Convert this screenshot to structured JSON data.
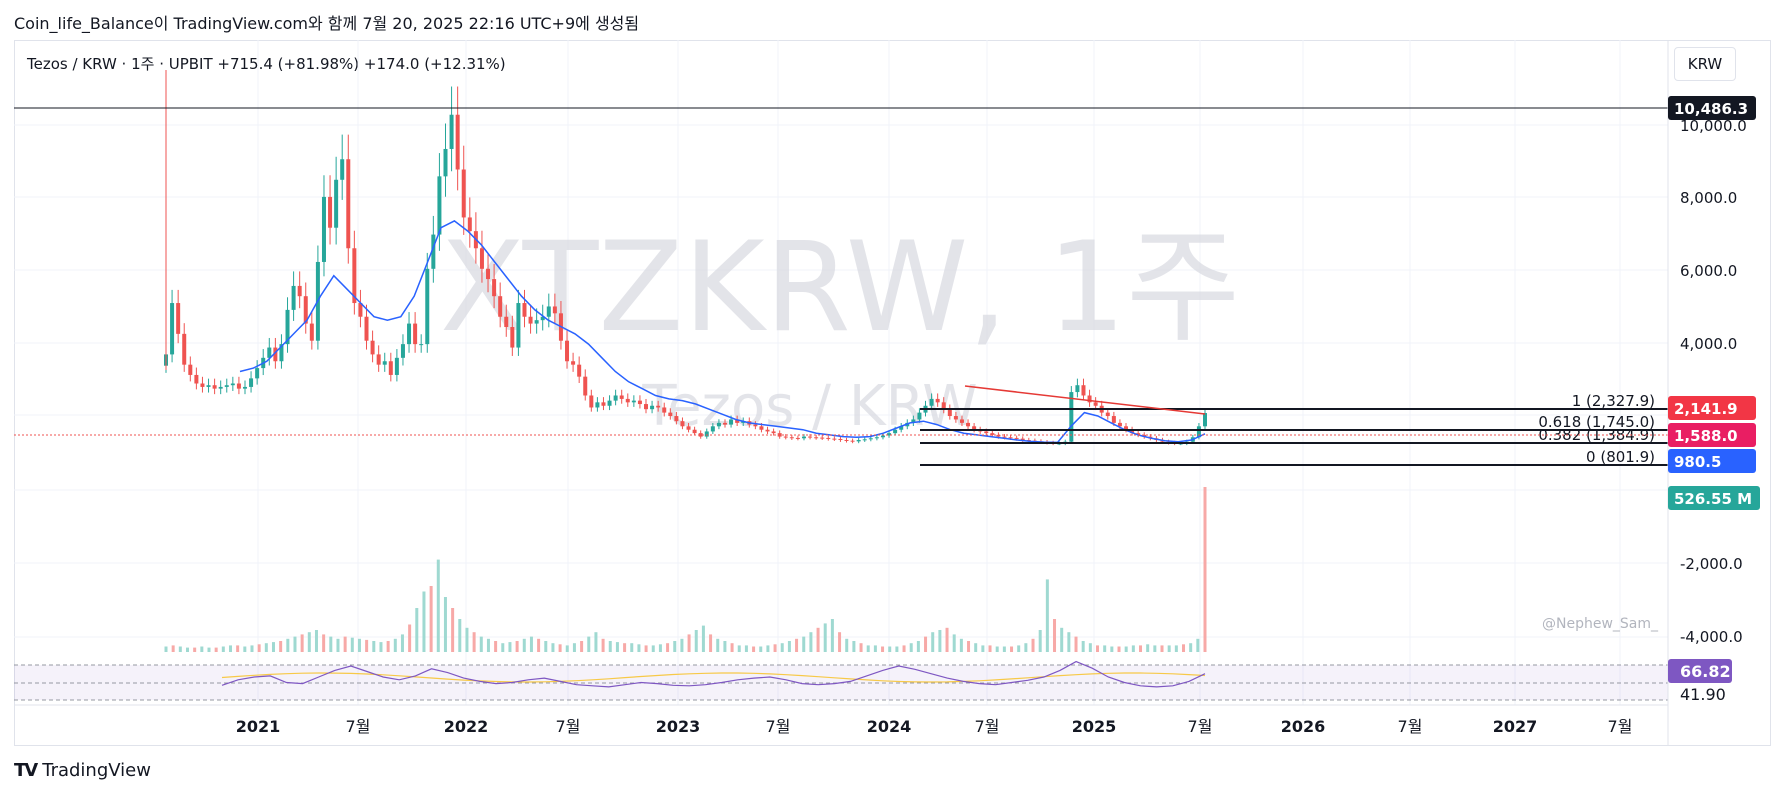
{
  "header": {
    "title": "Coin_life_Balance이 TradingView.com와 함께 7월 20, 2025 22:16 UTC+9에 생성됨"
  },
  "symbol": {
    "line": "Tezos / KRW · 1주 · UPBIT  +715.4 (+81.98%)  +174.0 (+12.31%)"
  },
  "currency_button": "KRW",
  "watermark": {
    "main": "XTZKRW, 1주",
    "sub": "Tezos / KRW"
  },
  "credit": "@Nephew_Sam_",
  "footer": {
    "logo": "TV",
    "name": "TradingView"
  },
  "colors": {
    "up": "#26a69a",
    "down": "#ef5350",
    "ma": "#2962ff",
    "rsi": "#7e57c2",
    "rsi_ma": "#f7c948",
    "trendline": "#e53935",
    "volume_up": "#9fd9d1",
    "volume_down": "#f7a9a7"
  },
  "chart_data": {
    "type": "candlestick",
    "x_ticks": [
      "2021",
      "7월",
      "2022",
      "7월",
      "2023",
      "7월",
      "2024",
      "7월",
      "2025",
      "7월",
      "2026",
      "7월",
      "2027",
      "7월"
    ],
    "y_ticks": [
      "10,000.0",
      "8,000.0",
      "6,000.0",
      "4,000.0",
      "-2,000.0",
      "-4,000.0"
    ],
    "price_labels": [
      {
        "text": "10,486.3",
        "value": 10486.3,
        "color": "#131722"
      },
      {
        "text": "2,141.9",
        "value": 2141.9,
        "color": "#f23645"
      },
      {
        "text": "1,588.0",
        "value": 1588.0,
        "color": "#e91e63"
      },
      {
        "text": "980.5",
        "value": 980.5,
        "color": "#2962ff"
      },
      {
        "text": "526.55 M",
        "value": 526.55,
        "color": "#26a69a"
      }
    ],
    "fib_levels": [
      {
        "text": "1 (2,327.9)",
        "level": 1,
        "price": 2327.9
      },
      {
        "text": "0.618 (1,745.0)",
        "level": 0.618,
        "price": 1745.0
      },
      {
        "text": "0.382 (1,384.9)",
        "level": 0.382,
        "price": 1384.9
      },
      {
        "text": "0 (801.9)",
        "level": 0,
        "price": 801.9
      }
    ],
    "rsi": {
      "value_label": "66.82",
      "ma_label": "41.90",
      "value": 66.82,
      "ma": 41.9
    },
    "weekly_close": [
      3300,
      4800,
      3900,
      3000,
      2700,
      2450,
      2350,
      2400,
      2300,
      2350,
      2400,
      2450,
      2300,
      2350,
      2600,
      2900,
      3200,
      3500,
      3100,
      3600,
      4600,
      5300,
      5000,
      4200,
      3700,
      6000,
      7900,
      7000,
      8400,
      9000,
      6400,
      4800,
      4400,
      3700,
      3300,
      3000,
      3100,
      2700,
      3200,
      3600,
      4200,
      3600,
      3600,
      5800,
      6800,
      8500,
      9300,
      10300,
      8700,
      7300,
      6900,
      6400,
      5800,
      5500,
      5000,
      4400,
      4100,
      3500,
      4800,
      4400,
      4200,
      4300,
      4400,
      4700,
      4500,
      3700,
      3100,
      3000,
      2650,
      2100,
      1750,
      1900,
      1800,
      1950,
      2100,
      2000,
      1900,
      1950,
      1850,
      1700,
      1800,
      1750,
      1600,
      1500,
      1350,
      1200,
      1100,
      1000,
      900,
      1050,
      1200,
      1300,
      1250,
      1400,
      1300,
      1350,
      1250,
      1200,
      1100,
      1050,
      1000,
      900,
      880,
      860,
      850,
      900,
      880,
      870,
      860,
      840,
      830,
      800,
      780,
      760,
      800,
      820,
      850,
      880,
      930,
      1000,
      1100,
      1200,
      1300,
      1400,
      1600,
      1800,
      2000,
      1900,
      1700,
      1500,
      1400,
      1300,
      1200,
      1100,
      1050,
      1000,
      950,
      900,
      880,
      860,
      840,
      800,
      780,
      760,
      740,
      720,
      700,
      700,
      750,
      2200,
      2400,
      2100,
      1900,
      1800,
      1600,
      1500,
      1300,
      1200,
      1100,
      1000,
      950,
      900,
      850,
      800,
      750,
      720,
      700,
      700,
      750,
      880,
      1200,
      1588
    ],
    "ma_line": [
      2800,
      2900,
      3100,
      3500,
      3900,
      4300,
      5000,
      5600,
      5200,
      4800,
      4400,
      4300,
      4400,
      5000,
      6000,
      7000,
      7200,
      6900,
      6500,
      6000,
      5500,
      5000,
      4600,
      4300,
      4100,
      3900,
      3600,
      3200,
      2800,
      2500,
      2300,
      2100,
      2000,
      1950,
      1850,
      1700,
      1550,
      1400,
      1300,
      1250,
      1200,
      1150,
      1100,
      1000,
      950,
      900,
      880,
      900,
      1000,
      1150,
      1300,
      1350,
      1250,
      1100,
      1000,
      950,
      900,
      850,
      800,
      760,
      740,
      730,
      1200,
      1600,
      1500,
      1300,
      1100,
      950,
      850,
      780,
      750,
      800,
      980
    ],
    "volume": [
      5,
      6,
      5,
      4,
      4,
      5,
      4,
      4,
      5,
      6,
      6,
      5,
      6,
      7,
      8,
      9,
      10,
      12,
      14,
      16,
      18,
      20,
      16,
      14,
      12,
      14,
      13,
      12,
      11,
      10,
      9,
      10,
      12,
      16,
      25,
      40,
      55,
      60,
      84,
      50,
      40,
      30,
      22,
      18,
      14,
      12,
      10,
      8,
      9,
      10,
      12,
      14,
      12,
      10,
      8,
      7,
      6,
      8,
      10,
      14,
      18,
      12,
      10,
      9,
      8,
      8,
      7,
      6,
      6,
      7,
      8,
      10,
      12,
      16,
      20,
      24,
      16,
      12,
      10,
      8,
      6,
      6,
      5,
      5,
      6,
      7,
      8,
      10,
      12,
      14,
      18,
      22,
      26,
      30,
      18,
      12,
      10,
      8,
      6,
      6,
      5,
      5,
      5,
      6,
      8,
      10,
      14,
      18,
      20,
      22,
      16,
      12,
      10,
      8,
      6,
      6,
      5,
      5,
      5,
      6,
      8,
      12,
      20,
      66,
      30,
      22,
      18,
      14,
      10,
      8,
      6,
      6,
      5,
      5,
      5,
      6,
      6,
      7,
      6,
      6,
      6,
      6,
      7,
      8,
      12,
      150
    ]
  }
}
